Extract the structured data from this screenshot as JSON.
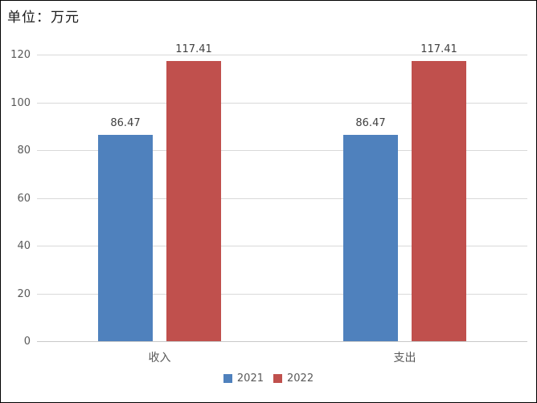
{
  "chart_data": {
    "type": "bar",
    "title": "单位：万元",
    "categories": [
      "收入",
      "支出"
    ],
    "series": [
      {
        "name": "2021",
        "color": "#4F81BD",
        "values": [
          86.47,
          86.47
        ],
        "labels": [
          "86.47",
          "86.47"
        ]
      },
      {
        "name": "2022",
        "color": "#C0504D",
        "values": [
          117.41,
          117.41
        ],
        "labels": [
          "117.41",
          "117.41"
        ]
      }
    ],
    "ylim": [
      0,
      120
    ],
    "yticks": [
      0,
      20,
      40,
      60,
      80,
      100,
      120
    ],
    "grid": "horizontal",
    "legend_position": "bottom",
    "colors": {
      "gridline": "#D9D9D9",
      "axis_line": "#C9C9C9",
      "tick_text": "#595959",
      "value_label_text": "#404040",
      "category_text": "#595959",
      "title_text": "#1A1A1A",
      "background": "#FFFFFF",
      "border": "#000000"
    }
  }
}
